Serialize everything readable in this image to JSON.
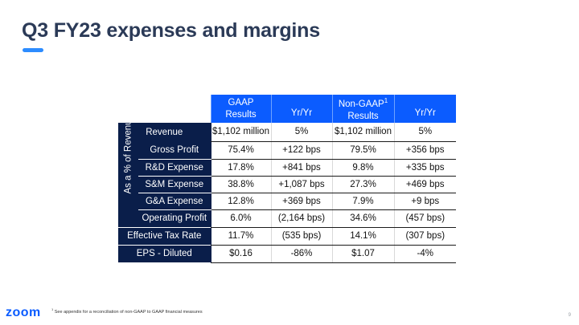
{
  "title": "Q3 FY23 expenses and margins",
  "headers": {
    "gaap_line1": "GAAP",
    "gaap_line2": "Results",
    "yr1": "Yr/Yr",
    "nongaap_line1": "Non-GAAP",
    "nongaap_sup": "1",
    "nongaap_line2": "Results",
    "yr2": "Yr/Yr"
  },
  "side_label": "As a % of Revenue",
  "rows": [
    {
      "label": "Revenue",
      "gaap": "$1,102 million",
      "gaap_yr": "5%",
      "nongaap": "$1,102 million",
      "nongaap_yr": "5%"
    },
    {
      "label": "Gross Profit",
      "gaap": "75.4%",
      "gaap_yr": "+122 bps",
      "nongaap": "79.5%",
      "nongaap_yr": "+356 bps"
    },
    {
      "label": "R&D Expense",
      "gaap": "17.8%",
      "gaap_yr": "+841 bps",
      "nongaap": "9.8%",
      "nongaap_yr": "+335 bps"
    },
    {
      "label": "S&M Expense",
      "gaap": "38.8%",
      "gaap_yr": "+1,087 bps",
      "nongaap": "27.3%",
      "nongaap_yr": "+469 bps"
    },
    {
      "label": "G&A Expense",
      "gaap": "12.8%",
      "gaap_yr": "+369 bps",
      "nongaap": "7.9%",
      "nongaap_yr": "+9 bps"
    },
    {
      "label": "Operating Profit",
      "gaap": "6.0%",
      "gaap_yr": "(2,164 bps)",
      "nongaap": "34.6%",
      "nongaap_yr": "(457 bps)"
    },
    {
      "label": "Effective Tax Rate",
      "gaap": "11.7%",
      "gaap_yr": "(535 bps)",
      "nongaap": "14.1%",
      "nongaap_yr": "(307 bps)"
    },
    {
      "label": "EPS - Diluted",
      "gaap": "$0.16",
      "gaap_yr": "-86%",
      "nongaap": "$1.07",
      "nongaap_yr": "-4%"
    }
  ],
  "footnote_sup": "1",
  "footnote": "See appendix for a reconciliation of non-GAAP to GAAP financial measures",
  "logo": "zoom",
  "page_number": "9",
  "colors": {
    "header_blue": "#0b5cff",
    "navy": "#0a1e4a",
    "title": "#2b3a57",
    "accent": "#2d8cff"
  }
}
